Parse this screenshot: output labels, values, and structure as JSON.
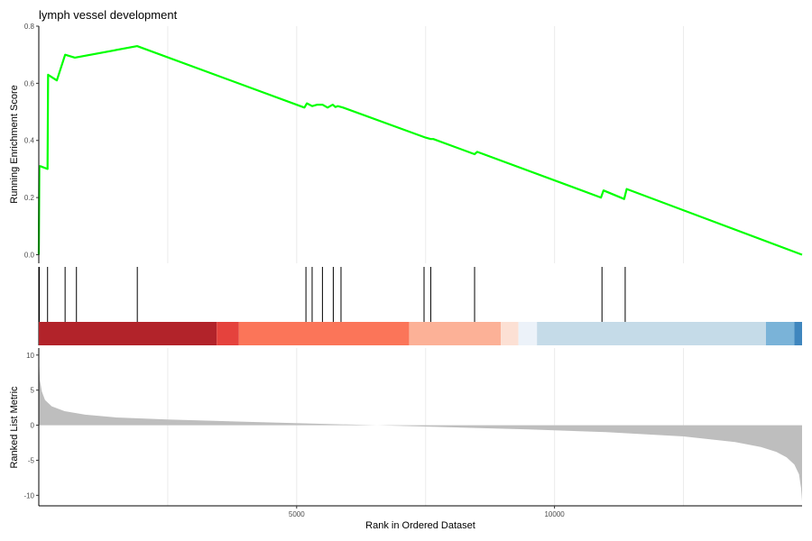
{
  "chart_data": {
    "type": "line",
    "title": "lymph vessel development",
    "panels": {
      "enrichment": {
        "ylabel": "Running Enrichment Score",
        "ylim": [
          -0.03,
          0.8
        ],
        "yticks": [
          0.0,
          0.2,
          0.4,
          0.6,
          0.8
        ],
        "ytick_labels": [
          "0.0",
          "0.2",
          "0.4",
          "0.6",
          "0.8"
        ],
        "color": "#00ff00",
        "series": [
          {
            "x": [
              0,
              10,
              30,
              170,
              180,
              350,
              510,
              700,
              1900,
              1910,
              5150,
              5200,
              5300,
              5400,
              5500,
              5600,
              5700,
              5750,
              5800,
              5900,
              7500,
              7600,
              7650,
              8450,
              8500,
              10900,
              10950,
              11350,
              11400,
              14800
            ],
            "y": [
              0.0,
              0.31,
              0.31,
              0.3,
              0.63,
              0.61,
              0.7,
              0.69,
              0.73,
              0.73,
              0.515,
              0.53,
              0.52,
              0.525,
              0.525,
              0.515,
              0.525,
              0.517,
              0.52,
              0.515,
              0.41,
              0.405,
              0.405,
              0.352,
              0.36,
              0.2,
              0.225,
              0.195,
              0.23,
              0.0
            ]
          }
        ]
      },
      "hits": {
        "gene_ranks": [
          10,
          170,
          510,
          730,
          1910,
          5180,
          5300,
          5500,
          5710,
          5860,
          7470,
          7600,
          8450,
          10920,
          11370
        ]
      },
      "color_bar": {
        "segments": [
          {
            "start": 0,
            "end": 3450,
            "color": "#b2232a"
          },
          {
            "start": 3450,
            "end": 3880,
            "color": "#e5423d"
          },
          {
            "start": 3880,
            "end": 7180,
            "color": "#fb7559"
          },
          {
            "start": 7180,
            "end": 8960,
            "color": "#fcb197"
          },
          {
            "start": 8960,
            "end": 9300,
            "color": "#fce0d4"
          },
          {
            "start": 9300,
            "end": 9660,
            "color": "#ecf2f9"
          },
          {
            "start": 9660,
            "end": 14100,
            "color": "#c5dbe8"
          },
          {
            "start": 14100,
            "end": 14650,
            "color": "#7ab3d8"
          },
          {
            "start": 14650,
            "end": 14800,
            "color": "#3f86be"
          }
        ]
      },
      "ranked": {
        "ylabel": "Ranked List Metric",
        "ylim": [
          -11.5,
          11
        ],
        "yticks": [
          10,
          5,
          0,
          -5,
          -10
        ],
        "ytick_labels": [
          "10",
          "5",
          "0",
          "-5",
          "-10"
        ],
        "color": "#bebebe",
        "x": [
          0,
          20,
          60,
          120,
          250,
          500,
          900,
          1500,
          2500,
          4000,
          6000,
          8000,
          9500,
          11000,
          12500,
          13500,
          14000,
          14300,
          14500,
          14650,
          14740,
          14780,
          14800
        ],
        "y": [
          10.0,
          6.5,
          4.8,
          3.6,
          2.7,
          2.0,
          1.5,
          1.1,
          0.8,
          0.5,
          0.1,
          -0.3,
          -0.6,
          -1.0,
          -1.6,
          -2.4,
          -3.1,
          -3.8,
          -4.6,
          -5.6,
          -7.0,
          -9.0,
          -10.8
        ]
      }
    },
    "xlabel": "Rank in Ordered Dataset",
    "xlim": [
      0,
      14800
    ],
    "xticks": [
      5000,
      10000
    ],
    "xtick_labels": [
      "5000",
      "10000"
    ],
    "x_gridlines": [
      2500,
      5000,
      7500,
      10000,
      12500
    ]
  }
}
